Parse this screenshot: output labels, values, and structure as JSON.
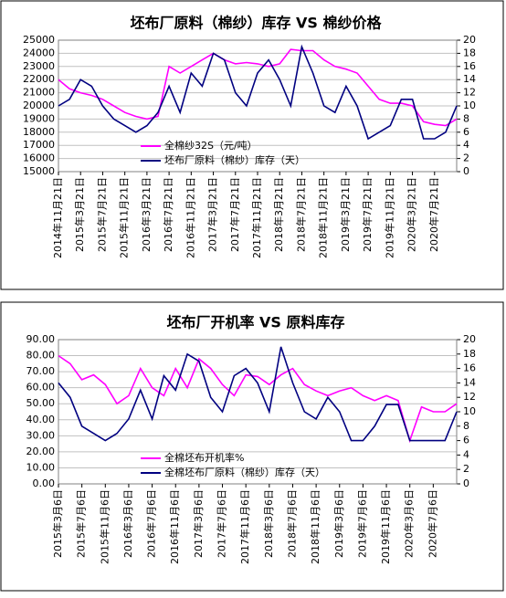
{
  "chart_data": [
    {
      "type": "line",
      "title": "坯布厂原料（棉纱）库存 VS 棉纱价格",
      "categories": [
        "2014年11月21日",
        null,
        "2015年3月21日",
        null,
        "2015年7月21日",
        null,
        "2015年11月21日",
        null,
        "2016年3月21日",
        null,
        "2016年7月21日",
        null,
        "2016年11月21日",
        null,
        "2017年3月21日",
        null,
        "2017年7月21日",
        null,
        "2017年11月21日",
        null,
        "2018年3月21日",
        null,
        "2018年7月21日",
        null,
        "2018年11月21日",
        null,
        "2019年3月21日",
        null,
        "2019年7月21日",
        null,
        "2019年11月21日",
        null,
        "2020年3月21日",
        null,
        "2020年7月21日",
        null,
        null
      ],
      "series": [
        {
          "name": "全棉纱32S（元/吨）",
          "color": "#ff00ff",
          "axis": "y",
          "values": [
            22000,
            21300,
            21000,
            20800,
            20500,
            20000,
            19500,
            19200,
            19000,
            19200,
            23000,
            22500,
            23000,
            23500,
            24000,
            23500,
            23200,
            23300,
            23200,
            23000,
            23200,
            24300,
            24200,
            24200,
            23500,
            23000,
            22800,
            22500,
            21500,
            20500,
            20200,
            20200,
            20000,
            18800,
            18600,
            18500,
            19000
          ]
        },
        {
          "name": "坯布厂原料（棉纱）库存（天）",
          "color": "#000080",
          "axis": "y2",
          "values": [
            10,
            11,
            14,
            13,
            10,
            8,
            7,
            6,
            7,
            9,
            13,
            9,
            15,
            13,
            18,
            17,
            12,
            10,
            15,
            17,
            14,
            10,
            19,
            15,
            10,
            9,
            13,
            10,
            5,
            6,
            7,
            11,
            11,
            5,
            5,
            6,
            10
          ]
        }
      ],
      "ylim": [
        15000,
        25000
      ],
      "yticks": [
        15000,
        16000,
        17000,
        18000,
        19000,
        20000,
        21000,
        22000,
        23000,
        24000,
        25000
      ],
      "y2lim": [
        0,
        20
      ],
      "y2ticks": [
        0,
        2,
        4,
        6,
        8,
        10,
        12,
        14,
        16,
        18,
        20
      ],
      "grid": true,
      "legend": "lower center"
    },
    {
      "type": "line",
      "title": "坯布厂开机率 VS 原料库存",
      "categories": [
        "2015年3月6日",
        null,
        "2015年7月6日",
        null,
        "2015年11月6日",
        null,
        "2016年3月6日",
        null,
        "2016年7月6日",
        null,
        "2016年11月6日",
        null,
        "2017年3月6日",
        null,
        "2017年7月6日",
        null,
        "2017年11月6日",
        null,
        "2018年3月6日",
        null,
        "2018年7月6日",
        null,
        "2018年11月6日",
        null,
        "2019年3月6日",
        null,
        "2019年7月6日",
        null,
        "2019年11月6日",
        null,
        "2020年3月6日",
        null,
        "2020年7月6日",
        null,
        null
      ],
      "series": [
        {
          "name": "全棉坯布开机率%",
          "color": "#ff00ff",
          "axis": "y",
          "values": [
            80,
            75,
            65,
            68,
            62,
            50,
            55,
            72,
            60,
            55,
            72,
            60,
            78,
            72,
            62,
            55,
            68,
            67,
            62,
            68,
            72,
            62,
            58,
            55,
            58,
            60,
            55,
            52,
            55,
            52,
            27,
            48,
            45,
            45,
            50
          ]
        },
        {
          "name": "全棉坯布厂原料（棉纱）库存（天）",
          "color": "#000080",
          "axis": "y2",
          "values": [
            14,
            12,
            8,
            7,
            6,
            7,
            9,
            13,
            9,
            15,
            13,
            18,
            17,
            12,
            10,
            15,
            16,
            14,
            10,
            19,
            14,
            10,
            9,
            12,
            10,
            6,
            6,
            8,
            11,
            11,
            6,
            6,
            6,
            6,
            10
          ]
        }
      ],
      "ylim": [
        0,
        90
      ],
      "yticks": [
        {
          "value": 0,
          "label": "0.00"
        },
        {
          "value": 10,
          "label": "10.00"
        },
        {
          "value": 20,
          "label": "20.00"
        },
        {
          "value": 30,
          "label": "30.00"
        },
        {
          "value": 40,
          "label": "40.00"
        },
        {
          "value": 50,
          "label": "50.00"
        },
        {
          "value": 60,
          "label": "60.00"
        },
        {
          "value": 70,
          "label": "70.00"
        },
        {
          "value": 80,
          "label": "80.00"
        },
        {
          "value": 90,
          "label": "90.00"
        }
      ],
      "y2lim": [
        0,
        20
      ],
      "y2ticks": [
        0,
        2,
        4,
        6,
        8,
        10,
        12,
        14,
        16,
        18,
        20
      ],
      "grid": true,
      "legend": "lower center"
    }
  ]
}
